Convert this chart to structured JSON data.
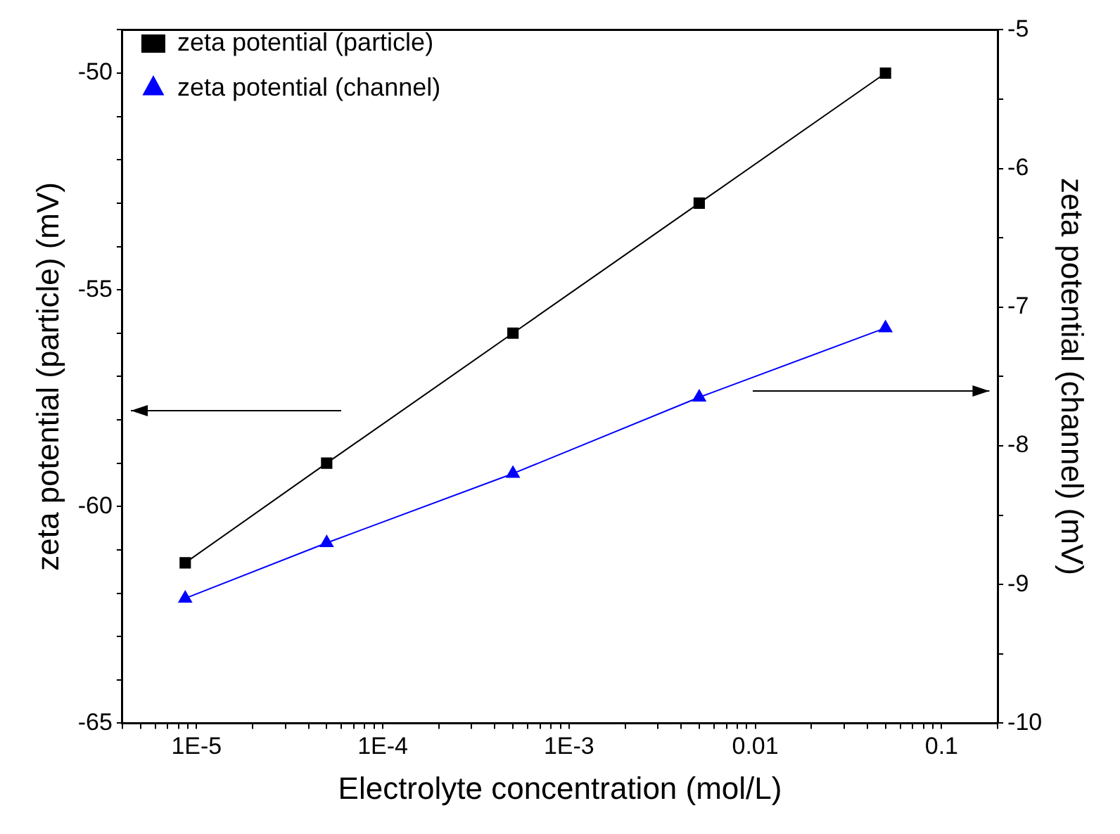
{
  "chart_data": {
    "type": "line",
    "xlabel": "Electrolyte concentration (mol/L)",
    "ylabel": "zeta potential (particle) (mV)",
    "y2label": "zeta potential (channel) (mV)",
    "log": "x",
    "grid": false,
    "legend": "top left",
    "line_style": "solid",
    "x": [
      8.7e-06,
      5e-05,
      0.0005,
      0.005,
      0.05
    ],
    "xlim": [
      4e-06,
      0.2
    ],
    "xticks": [
      {
        "value": 4e-06,
        "label": null
      },
      {
        "value": 5e-06,
        "label": null
      },
      {
        "value": 6e-06,
        "label": null
      },
      {
        "value": 7e-06,
        "label": null
      },
      {
        "value": 8e-06,
        "label": null
      },
      {
        "value": 9e-06,
        "label": null
      },
      {
        "value": 1e-05,
        "label": "1E-5"
      },
      {
        "value": 2e-05,
        "label": null
      },
      {
        "value": 3e-05,
        "label": null
      },
      {
        "value": 4e-05,
        "label": null
      },
      {
        "value": 5e-05,
        "label": null
      },
      {
        "value": 6e-05,
        "label": null
      },
      {
        "value": 7e-05,
        "label": null
      },
      {
        "value": 8e-05,
        "label": null
      },
      {
        "value": 9e-05,
        "label": null
      },
      {
        "value": 0.0001,
        "label": "1E-4"
      },
      {
        "value": 0.0002,
        "label": null
      },
      {
        "value": 0.0003,
        "label": null
      },
      {
        "value": 0.0004,
        "label": null
      },
      {
        "value": 0.0005,
        "label": null
      },
      {
        "value": 0.0006,
        "label": null
      },
      {
        "value": 0.0007,
        "label": null
      },
      {
        "value": 0.0008,
        "label": null
      },
      {
        "value": 0.0009,
        "label": null
      },
      {
        "value": 0.001,
        "label": "1E-3"
      },
      {
        "value": 0.002,
        "label": null
      },
      {
        "value": 0.003,
        "label": null
      },
      {
        "value": 0.004,
        "label": null
      },
      {
        "value": 0.005,
        "label": null
      },
      {
        "value": 0.006,
        "label": null
      },
      {
        "value": 0.007,
        "label": null
      },
      {
        "value": 0.008,
        "label": null
      },
      {
        "value": 0.009,
        "label": null
      },
      {
        "value": 0.01,
        "label": "0.01"
      },
      {
        "value": 0.02,
        "label": null
      },
      {
        "value": 0.03,
        "label": null
      },
      {
        "value": 0.04,
        "label": null
      },
      {
        "value": 0.05,
        "label": null
      },
      {
        "value": 0.06,
        "label": null
      },
      {
        "value": 0.07,
        "label": null
      },
      {
        "value": 0.08,
        "label": null
      },
      {
        "value": 0.09,
        "label": null
      },
      {
        "value": 0.1,
        "label": "0.1"
      },
      {
        "value": 0.2,
        "label": null
      }
    ],
    "ylim": [
      -65,
      -49
    ],
    "yticks": [
      -65,
      {
        "value": -64,
        "label": null
      },
      {
        "value": -63,
        "label": null
      },
      {
        "value": -62,
        "label": null
      },
      {
        "value": -61,
        "label": null
      },
      -60,
      {
        "value": -59,
        "label": null
      },
      {
        "value": -58,
        "label": null
      },
      {
        "value": -57,
        "label": null
      },
      {
        "value": -56,
        "label": null
      },
      -55,
      {
        "value": -54,
        "label": null
      },
      {
        "value": -53,
        "label": null
      },
      {
        "value": -52,
        "label": null
      },
      {
        "value": -51,
        "label": null
      },
      -50,
      {
        "value": -49,
        "label": null
      }
    ],
    "y2lim": [
      -10,
      -5
    ],
    "y2ticks": [
      -10,
      {
        "value": -9.5,
        "label": null
      },
      -9,
      {
        "value": -8.5,
        "label": null
      },
      -8,
      {
        "value": -7.5,
        "label": null
      },
      -7,
      {
        "value": -6.5,
        "label": null
      },
      -6,
      {
        "value": -5.5,
        "label": null
      },
      -5
    ],
    "series": [
      {
        "name": "zeta potential (particle)",
        "color": "#000000",
        "marker": "square",
        "values": [
          -61.3,
          -59,
          -56,
          -53,
          -50
        ]
      },
      {
        "name": "zeta potential (channel)",
        "color": "#0000ff",
        "marker": "triangle",
        "axis": "y2",
        "values": [
          -9.1,
          -8.7,
          -8.2,
          -7.65,
          -7.15
        ]
      }
    ]
  }
}
